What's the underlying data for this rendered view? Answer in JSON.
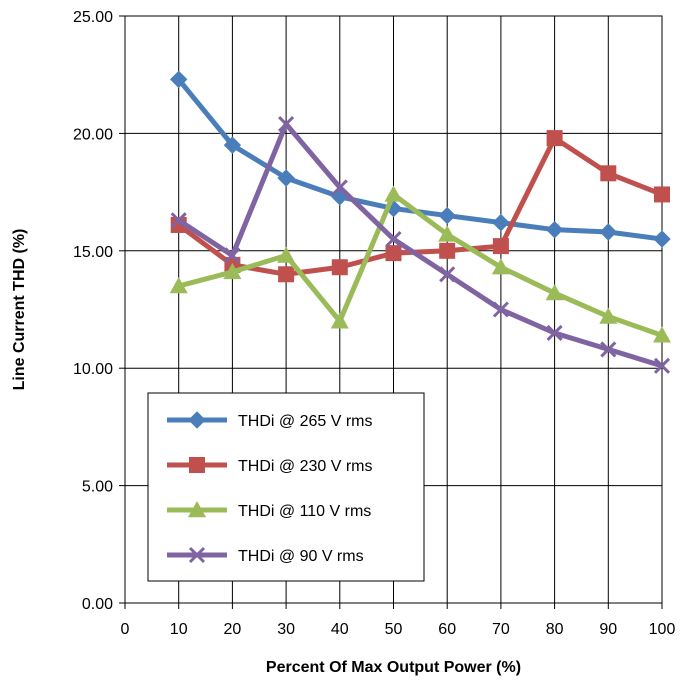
{
  "chart_data": {
    "type": "line",
    "title": "",
    "xlabel": "Percent Of Max Output Power (%)",
    "ylabel": "Line Current THD (%)",
    "xlim": [
      0,
      100
    ],
    "ylim": [
      0,
      25
    ],
    "x_ticks": [
      "0",
      "10",
      "20",
      "30",
      "40",
      "50",
      "60",
      "70",
      "80",
      "90",
      "100"
    ],
    "y_ticks": [
      "0.00",
      "5.00",
      "10.00",
      "15.00",
      "20.00",
      "25.00"
    ],
    "grid": true,
    "legend_position": "lower-left",
    "x": [
      10,
      20,
      30,
      40,
      50,
      60,
      70,
      80,
      90,
      100
    ],
    "series": [
      {
        "name": "THDi @ 265 V rms",
        "color": "#4a7ebb",
        "marker": "diamond",
        "values": [
          22.3,
          19.5,
          18.1,
          17.3,
          16.8,
          16.5,
          16.2,
          15.9,
          15.8,
          15.5
        ]
      },
      {
        "name": "THDi @ 230 V rms",
        "color": "#c0504d",
        "marker": "square",
        "values": [
          16.1,
          14.4,
          14.0,
          14.3,
          14.9,
          15.0,
          15.2,
          19.8,
          18.3,
          17.4
        ]
      },
      {
        "name": "THDi @ 110 V rms",
        "color": "#9bbb59",
        "marker": "triangle",
        "values": [
          13.5,
          14.1,
          14.8,
          12.0,
          17.4,
          15.7,
          14.3,
          13.2,
          12.2,
          11.4
        ]
      },
      {
        "name": "THDi @ 90 V rms",
        "color": "#8064a2",
        "marker": "x",
        "values": [
          16.3,
          14.8,
          20.4,
          17.7,
          15.5,
          14.0,
          12.5,
          11.5,
          10.8,
          10.1
        ]
      }
    ]
  }
}
